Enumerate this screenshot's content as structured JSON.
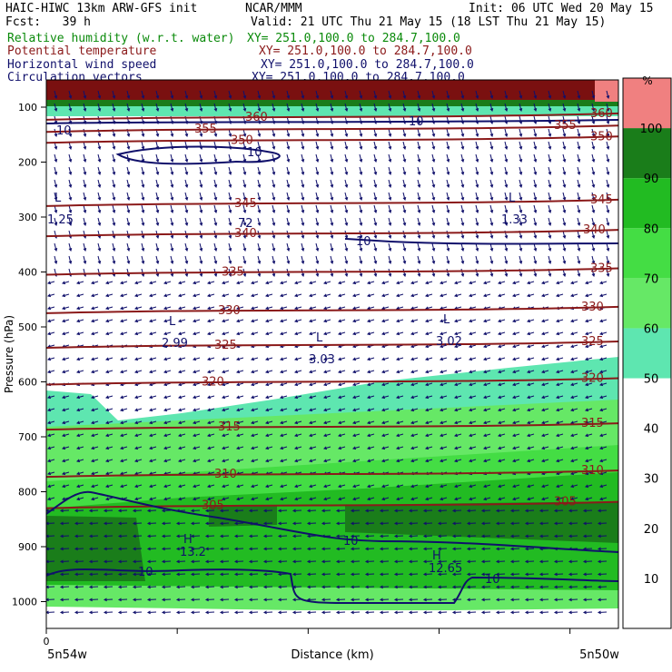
{
  "header": {
    "model": "HAIC-HIWC 13km ARW-GFS init",
    "org": "NCAR/MMM",
    "init": "Init: 06 UTC Wed 20 May 15",
    "fcst": "Fcst:   39 h",
    "valid": "Valid: 21 UTC Thu 21 May 15 (18 LST Thu 21 May 15)",
    "fields": [
      {
        "name": "Relative humidity (w.r.t. water)",
        "xy": "XY= 251.0,100.0 to 284.7,100.0",
        "color": "#0a8a0a"
      },
      {
        "name": "Potential temperature",
        "xy": "XY= 251.0,100.0 to 284.7,100.0",
        "color": "#8b1a1a"
      },
      {
        "name": "Horizontal wind speed",
        "xy": "XY= 251.0,100.0 to 284.7,100.0",
        "color": "#10106b"
      },
      {
        "name": "Circulation vectors",
        "xy": "XY= 251.0,100.0 to 284.7,100.0",
        "color": "#10106b"
      }
    ]
  },
  "chart_data": {
    "type": "heatmap",
    "ylabel": "Pressure (hPa)",
    "xlabel": "Distance (km)",
    "y_ticks": [
      100,
      200,
      300,
      400,
      500,
      600,
      700,
      800,
      900,
      1000
    ],
    "x_tick_labels": {
      "start_value": "0",
      "left": "5n54w",
      "right": "5n50w"
    },
    "colorbar": {
      "unit": "%",
      "ticks": [
        10,
        20,
        30,
        40,
        50,
        60,
        70,
        80,
        90,
        100
      ],
      "bands": [
        {
          "from": 50,
          "to": 60,
          "color": "#5ee6b0"
        },
        {
          "from": 60,
          "to": 70,
          "color": "#66e866"
        },
        {
          "from": 70,
          "to": 80,
          "color": "#44dd44"
        },
        {
          "from": 80,
          "to": 90,
          "color": "#22bb22"
        },
        {
          "from": 90,
          "to": 100,
          "color": "#1a7d1a"
        },
        {
          "from": 100,
          "to": 110,
          "color": "#f08080"
        }
      ]
    },
    "theta_contours": [
      {
        "label": "305",
        "p": 825
      },
      {
        "label": "310",
        "p": 768
      },
      {
        "label": "315",
        "p": 682
      },
      {
        "label": "320",
        "p": 600
      },
      {
        "label": "325",
        "p": 533
      },
      {
        "label": "330",
        "p": 470
      },
      {
        "label": "335",
        "p": 400
      },
      {
        "label": "340",
        "p": 330
      },
      {
        "label": "345",
        "p": 275
      },
      {
        "label": "350",
        "p": 160
      },
      {
        "label": "355",
        "p": 140
      },
      {
        "label": "360",
        "p": 118
      }
    ],
    "wind_labels": [
      "10",
      "10",
      "10",
      "10",
      "10",
      "10",
      "10"
    ],
    "low_centers": [
      {
        "label": "L",
        "value": "1.25"
      },
      {
        "label": "L",
        "value": "1.33"
      },
      {
        "label": "L",
        "value": "2.99"
      },
      {
        "label": "L",
        "value": "3.03"
      },
      {
        "label": "L",
        "value": "3.02"
      }
    ],
    "high_centers": [
      {
        "label": "H",
        "value": "13.2"
      },
      {
        "label": "H",
        "value": "12.65"
      }
    ],
    "extra_labels": [
      "72"
    ]
  }
}
